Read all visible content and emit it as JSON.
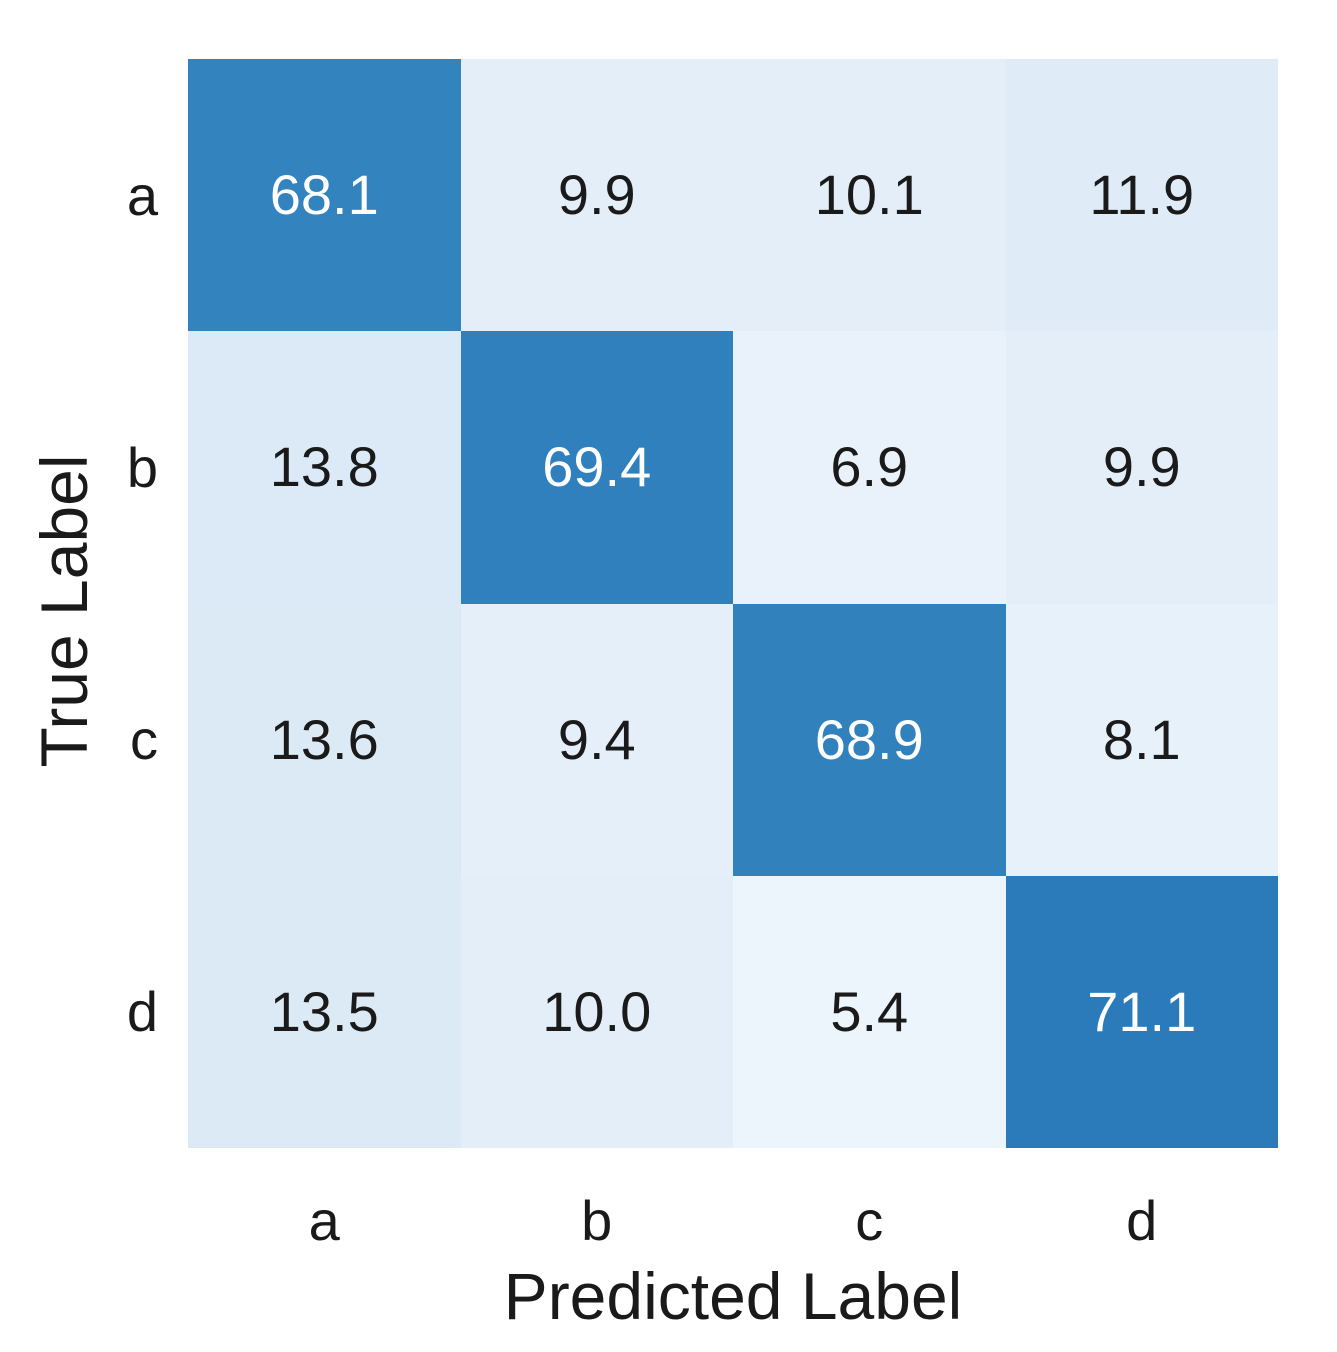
{
  "chart_data": {
    "type": "heatmap",
    "title": "",
    "xlabel": "Predicted Label",
    "ylabel": "True Label",
    "x_ticklabels": [
      "a",
      "b",
      "c",
      "d"
    ],
    "y_ticklabels": [
      "a",
      "b",
      "c",
      "d"
    ],
    "matrix": [
      [
        68.1,
        9.9,
        10.1,
        11.9
      ],
      [
        13.8,
        69.4,
        6.9,
        9.9
      ],
      [
        13.6,
        9.4,
        68.9,
        8.1
      ],
      [
        13.5,
        10.0,
        5.4,
        71.1
      ]
    ],
    "value_decimals": 1,
    "value_range": [
      0,
      100
    ],
    "legend_position": "none",
    "grid": false,
    "colormap": {
      "name": "Blues",
      "positions": [
        0,
        0.125,
        0.25,
        0.375,
        0.5,
        0.625,
        0.75,
        0.875,
        1.0
      ],
      "colors": [
        "#f7fbff",
        "#deebf7",
        "#c6dbef",
        "#9ecae1",
        "#6baed6",
        "#4292c6",
        "#2171b5",
        "#08519c",
        "#08306b"
      ]
    },
    "colors": {
      "annot_text_dark": "#1a1a1a",
      "annot_text_light": "#ffffff",
      "background": "#ffffff",
      "diagonal_cell": "#3383be"
    }
  }
}
